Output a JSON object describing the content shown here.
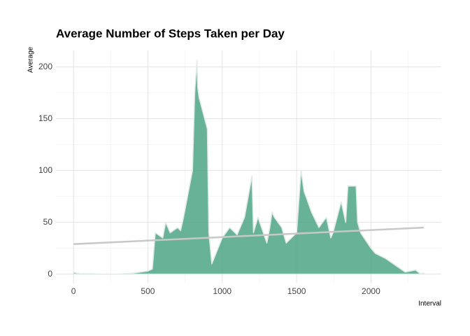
{
  "chart_data": {
    "type": "area",
    "title": "Average Number of Steps Taken per Day",
    "x_label": "Interval",
    "y_label": "Average",
    "xlim": [
      -118,
      2473
    ],
    "ylim": [
      -9,
      216
    ],
    "xticks": [
      0,
      500,
      1000,
      1500,
      2000
    ],
    "yticks": [
      0,
      50,
      100,
      150,
      200
    ],
    "xminor": [
      250,
      750,
      1250,
      1750,
      2250
    ],
    "yminor": [
      25,
      75,
      125,
      175
    ],
    "grid": true,
    "series": [
      {
        "type": "area",
        "color": "#4da486",
        "x": [
          0,
          50,
          100,
          150,
          200,
          250,
          300,
          350,
          400,
          450,
          500,
          530,
          550,
          600,
          620,
          650,
          700,
          720,
          740,
          800,
          815,
          830,
          835,
          845,
          900,
          910,
          930,
          1000,
          1050,
          1100,
          1150,
          1200,
          1210,
          1240,
          1300,
          1320,
          1335,
          1350,
          1400,
          1430,
          1500,
          1530,
          1550,
          1600,
          1650,
          1700,
          1730,
          1745,
          1800,
          1830,
          1845,
          1900,
          1910,
          1930,
          2000,
          2030,
          2100,
          2150,
          2200,
          2230,
          2300,
          2330,
          2355
        ],
        "values": [
          1.7,
          0.3,
          0.4,
          0.1,
          0,
          0,
          0,
          0.5,
          1,
          2,
          3,
          5,
          40,
          35,
          50,
          40,
          45,
          42,
          55,
          100,
          175,
          206,
          180,
          170,
          140,
          40,
          10,
          35,
          45,
          38,
          55,
          95,
          40,
          55,
          30,
          45,
          60,
          55,
          45,
          30,
          40,
          100,
          80,
          60,
          45,
          55,
          35,
          40,
          70,
          50,
          85,
          85,
          50,
          40,
          25,
          20,
          15,
          10,
          5,
          2,
          4,
          0.5,
          1
        ]
      },
      {
        "type": "line",
        "color": "#c8c8c8",
        "x": [
          0,
          2355
        ],
        "values": [
          29,
          45
        ]
      }
    ]
  }
}
